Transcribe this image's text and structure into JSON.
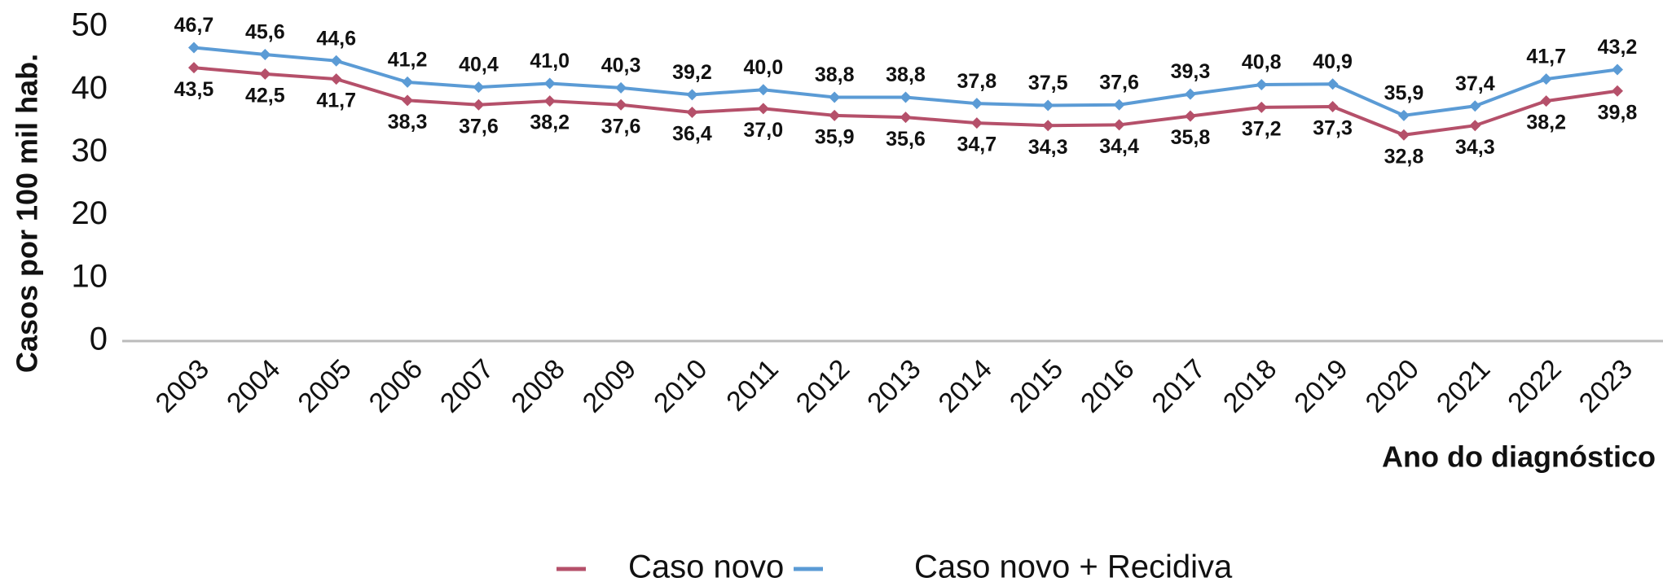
{
  "chart_data": {
    "type": "line",
    "x_label": "Ano do diagnóstico",
    "y_label": "Casos por 100 mil hab.",
    "categories": [
      "2003",
      "2004",
      "2005",
      "2006",
      "2007",
      "2008",
      "2009",
      "2010",
      "2011",
      "2012",
      "2013",
      "2014",
      "2015",
      "2016",
      "2017",
      "2018",
      "2019",
      "2020",
      "2021",
      "2022",
      "2023"
    ],
    "series": [
      {
        "name": "Caso novo",
        "color": "#b5506a",
        "values": [
          43.5,
          42.5,
          41.7,
          38.3,
          37.6,
          38.2,
          37.6,
          36.4,
          37.0,
          35.9,
          35.6,
          34.7,
          34.3,
          34.4,
          35.8,
          37.2,
          37.3,
          32.8,
          34.3,
          38.2,
          39.8
        ],
        "value_labels": [
          "43,5",
          "42,5",
          "41,7",
          "38,3",
          "37,6",
          "38,2",
          "37,6",
          "36,4",
          "37,0",
          "35,9",
          "35,6",
          "34,7",
          "34,3",
          "34,4",
          "35,8",
          "37,2",
          "37,3",
          "32,8",
          "34,3",
          "38,2",
          "39,8"
        ]
      },
      {
        "name": "Caso novo + Recidiva",
        "color": "#5b9bd5",
        "values": [
          46.7,
          45.6,
          44.6,
          41.2,
          40.4,
          41.0,
          40.3,
          39.2,
          40.0,
          38.8,
          38.8,
          37.8,
          37.5,
          37.6,
          39.3,
          40.8,
          40.9,
          35.9,
          37.4,
          41.7,
          43.2
        ],
        "value_labels": [
          "46,7",
          "45,6",
          "44,6",
          "41,2",
          "40,4",
          "41,0",
          "40,3",
          "39,2",
          "40,0",
          "38,8",
          "38,8",
          "37,8",
          "37,5",
          "37,6",
          "39,3",
          "40,8",
          "40,9",
          "35,9",
          "37,4",
          "41,7",
          "43,2"
        ]
      }
    ],
    "ylim": [
      0,
      50
    ],
    "yticks": [
      0,
      10,
      20,
      30,
      40,
      50
    ],
    "grid": false,
    "legend": "bottom"
  }
}
